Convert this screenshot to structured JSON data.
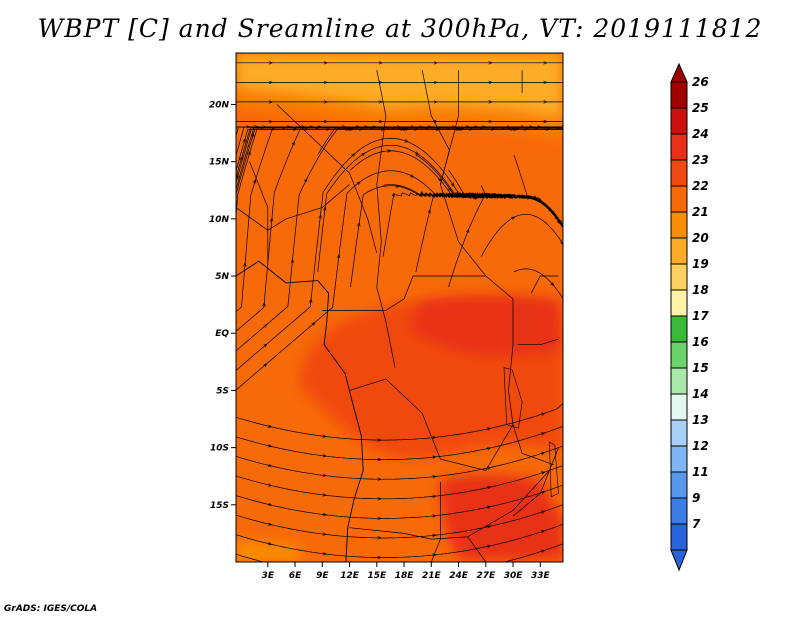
{
  "title": "WBPT [C] and Sreamline at 300hPa, VT: 2019111812",
  "credit": "GrADS: IGES/COLA",
  "map": {
    "lon_range": [
      -0.5,
      35.5
    ],
    "lat_range": [
      -20,
      24.5
    ],
    "lat_ticks": [
      {
        "value": 20,
        "label": "20N"
      },
      {
        "value": 15,
        "label": "15N"
      },
      {
        "value": 10,
        "label": "10N"
      },
      {
        "value": 5,
        "label": "5N"
      },
      {
        "value": 0,
        "label": "EQ"
      },
      {
        "value": -5,
        "label": "5S"
      },
      {
        "value": -10,
        "label": "10S"
      },
      {
        "value": -15,
        "label": "15S"
      }
    ],
    "lon_ticks": [
      {
        "value": 3,
        "label": "3E"
      },
      {
        "value": 6,
        "label": "6E"
      },
      {
        "value": 9,
        "label": "9E"
      },
      {
        "value": 12,
        "label": "12E"
      },
      {
        "value": 15,
        "label": "15E"
      },
      {
        "value": 18,
        "label": "18E"
      },
      {
        "value": 21,
        "label": "21E"
      },
      {
        "value": 24,
        "label": "24E"
      },
      {
        "value": 27,
        "label": "27E"
      },
      {
        "value": 30,
        "label": "30E"
      },
      {
        "value": 33,
        "label": "33E"
      }
    ],
    "colorbar": {
      "labels": [
        "26",
        "25",
        "24",
        "23",
        "22",
        "21",
        "20",
        "19",
        "18",
        "17",
        "16",
        "15",
        "14",
        "13",
        "12",
        "11",
        "9",
        "7"
      ],
      "colors": [
        "#a00000",
        "#cc1010",
        "#e83018",
        "#f04a10",
        "#f76a0a",
        "#fa8c06",
        "#fcac26",
        "#fdd060",
        "#fff3a8",
        "#3aba3a",
        "#6cd26c",
        "#aae8aa",
        "#e4f6f0",
        "#a8d0f4",
        "#80b4f2",
        "#5898ec",
        "#3a7ee4",
        "#2a64dc"
      ],
      "top_color": "#a00000",
      "bottom_color": "#2a64dc"
    },
    "field_colors": {
      "level_20": "#fcac26",
      "level_21": "#fa8c06",
      "level_22": "#f76a0a",
      "level_23": "#f04a10",
      "level_24": "#e83018"
    }
  }
}
